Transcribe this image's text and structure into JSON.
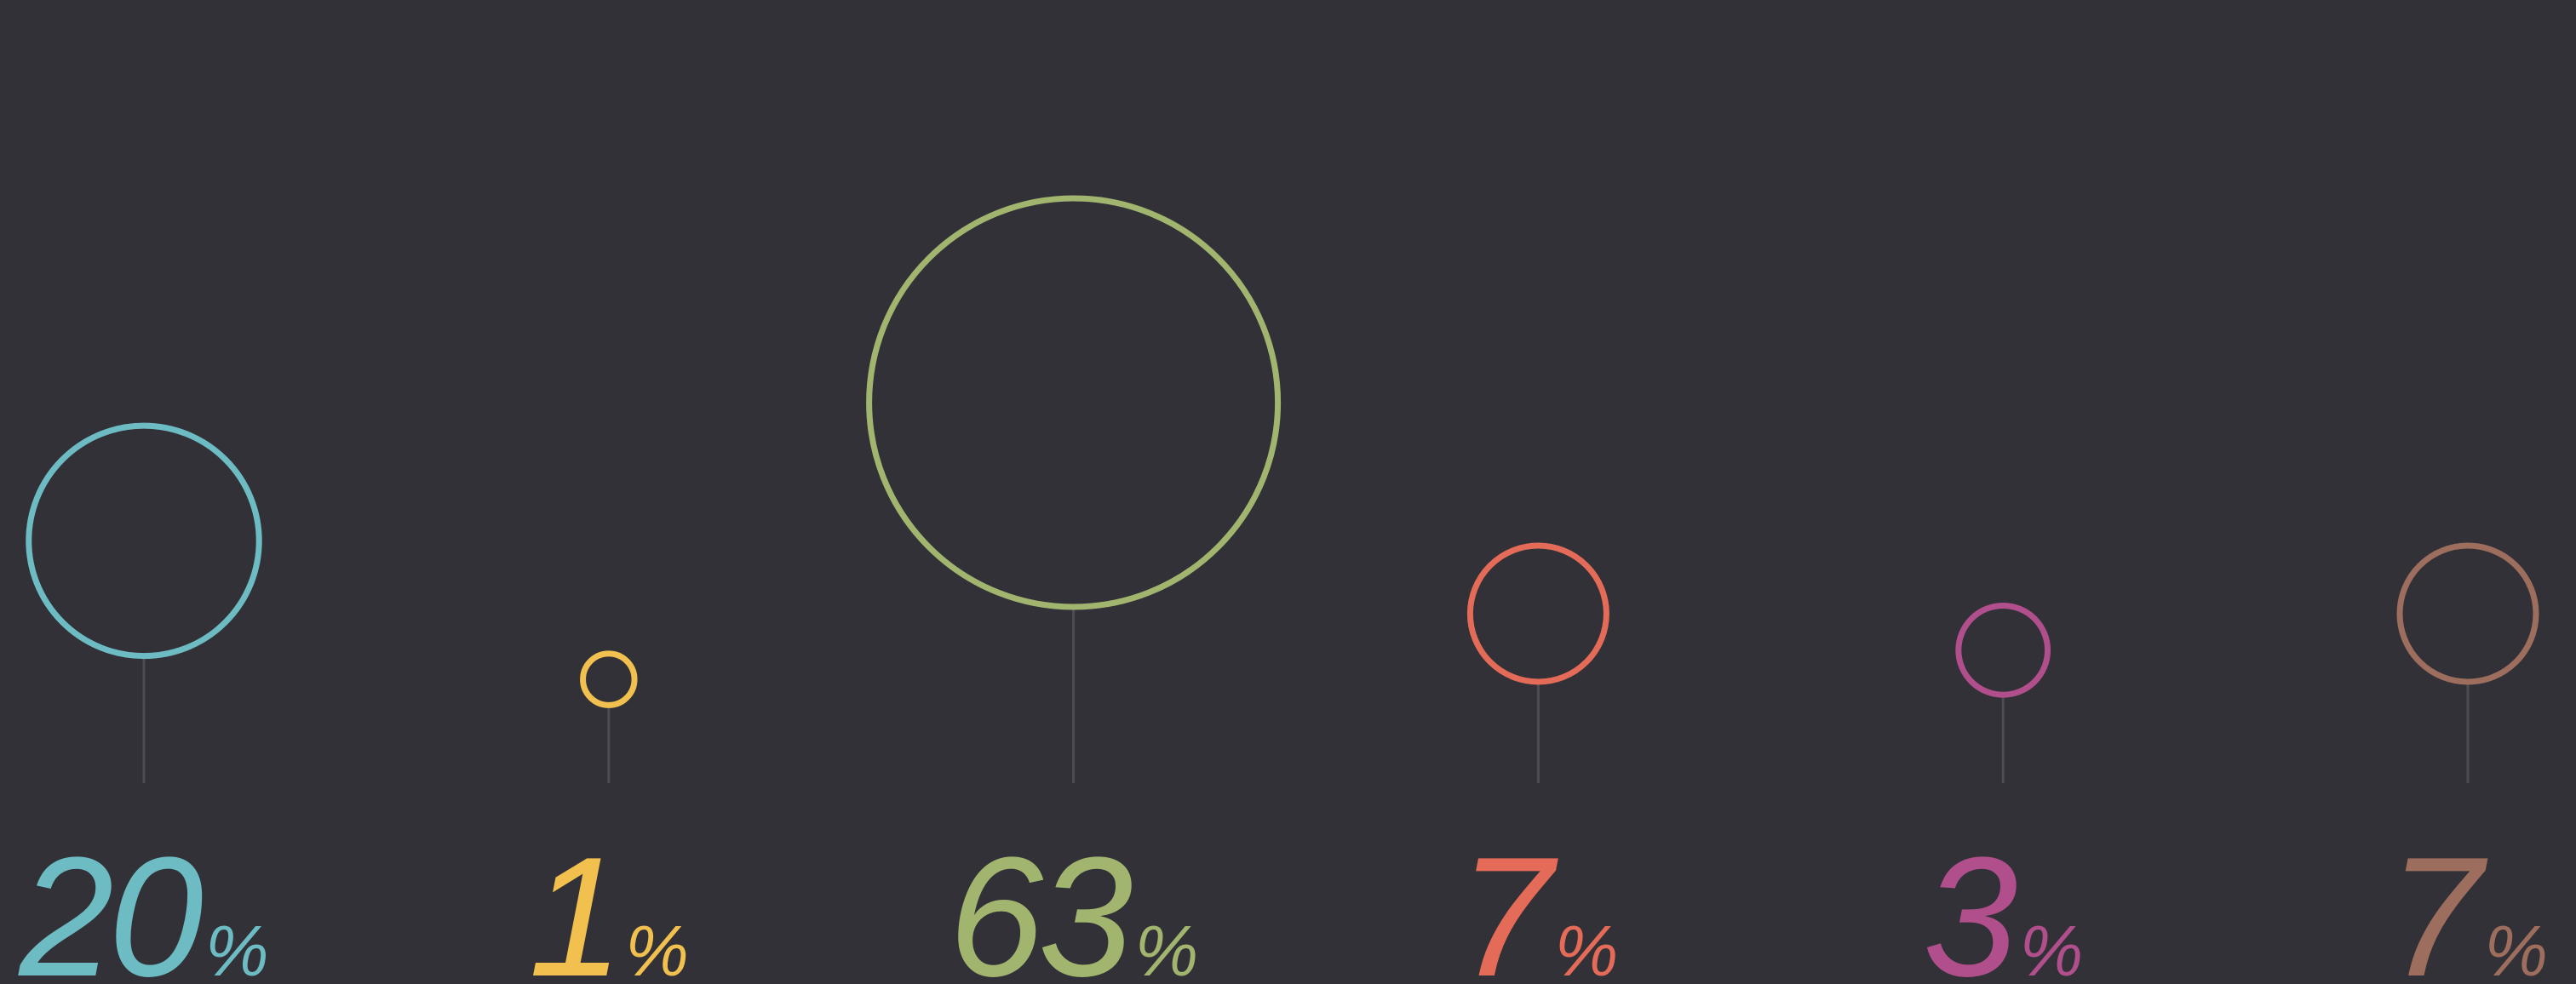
{
  "chart_data": {
    "type": "bubble-lollipop",
    "categories": [
      "",
      "",
      "",
      "",
      "",
      ""
    ],
    "series": [
      {
        "values": [
          20,
          1,
          63,
          7,
          3,
          7
        ],
        "labels": [
          "20",
          "1",
          "63",
          "7",
          "3",
          "7"
        ],
        "unit": "%",
        "colors": [
          "#6dbcc3",
          "#f1c04f",
          "#a2b56f",
          "#e46b57",
          "#b04f8c",
          "#9d6e5e"
        ]
      }
    ],
    "title": "",
    "xlabel": "",
    "ylabel": "",
    "grid": false,
    "legend": "none"
  },
  "theme": {
    "background": "#323137",
    "stem_color": "#4d4c52"
  }
}
